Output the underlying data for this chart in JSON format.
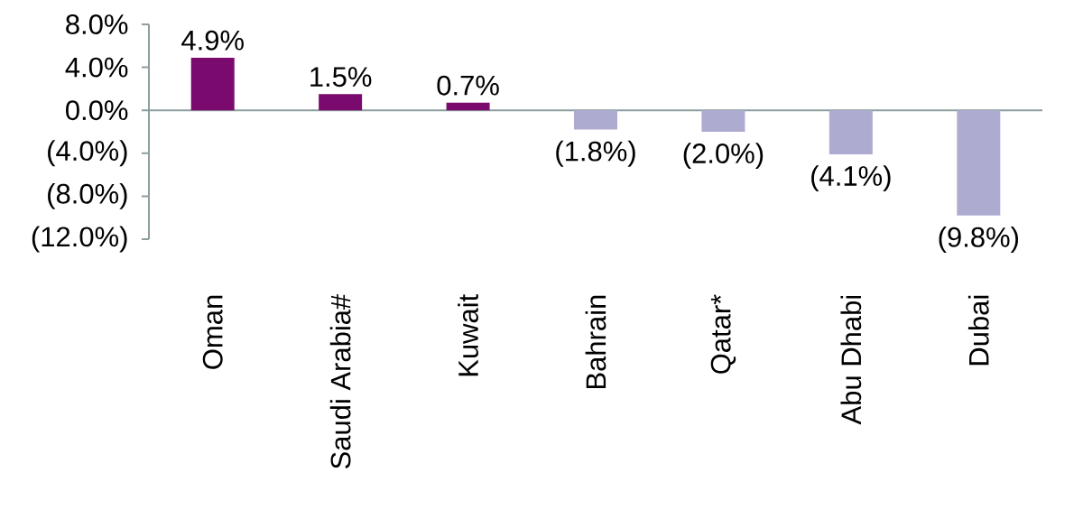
{
  "chart_data": {
    "type": "bar",
    "categories": [
      "Oman",
      "Saudi Arabia#",
      "Kuwait",
      "Bahrain",
      "Qatar*",
      "Abu Dhabi",
      "Dubai"
    ],
    "values": [
      4.9,
      1.5,
      0.7,
      -1.8,
      -2.0,
      -4.1,
      -9.8
    ],
    "colors": [
      "#7a0a6e",
      "#7a0a6e",
      "#7a0a6e",
      "#aeabd0",
      "#aeabd0",
      "#aeabd0",
      "#aeabd0"
    ],
    "value_labels": [
      "4.9%",
      "1.5%",
      "0.7%",
      "(1.8%)",
      "(2.0%)",
      "(4.1%)",
      "(9.8%)"
    ],
    "ylim": [
      -12,
      8
    ],
    "yticks": [
      {
        "value": -12,
        "label": "(12.0%)"
      },
      {
        "value": -8,
        "label": "(8.0%)"
      },
      {
        "value": -4,
        "label": "(4.0%)"
      },
      {
        "value": 0,
        "label": "0.0%"
      },
      {
        "value": 4,
        "label": "4.0%"
      },
      {
        "value": 8,
        "label": "8.0%"
      }
    ]
  }
}
